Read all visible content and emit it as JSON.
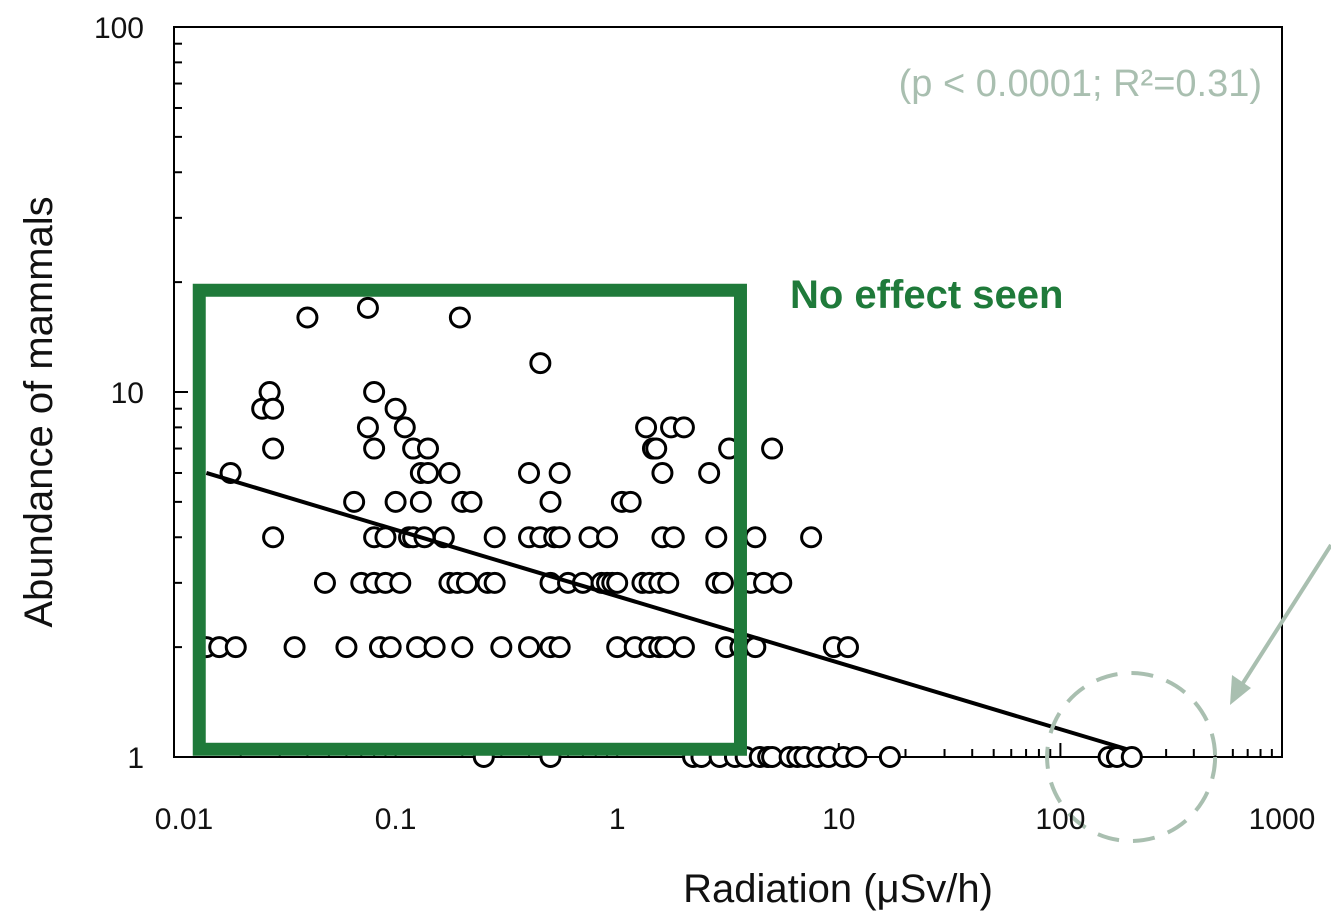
{
  "chart_data": {
    "type": "scatter",
    "xlabel": "Radiation (μSv/h)",
    "ylabel": "Abundance of mammals",
    "x_scale": "log",
    "y_scale": "log",
    "xlim": [
      0.01,
      1000
    ],
    "ylim": [
      1,
      100
    ],
    "x_tick_labels": [
      "0.01",
      "0.1",
      "1",
      "10",
      "100",
      "1000"
    ],
    "y_tick_labels": [
      "1",
      "10",
      "100"
    ],
    "grid": false,
    "statistics_label": "(p < 0.0001; R²=0.31)",
    "annotation_label": "No effect seen",
    "highlight_region": {
      "x": [
        0.013,
        3.6
      ],
      "y": [
        1.05,
        19
      ]
    },
    "trend_line": {
      "x": [
        0.014,
        200
      ],
      "y": [
        6.0,
        1.05
      ]
    },
    "circled_points_x_range": [
      160,
      230
    ],
    "points": [
      [
        0.014,
        2
      ],
      [
        0.016,
        2
      ],
      [
        0.019,
        2
      ],
      [
        0.018,
        6
      ],
      [
        0.025,
        9
      ],
      [
        0.027,
        10
      ],
      [
        0.028,
        9
      ],
      [
        0.028,
        7
      ],
      [
        0.028,
        4
      ],
      [
        0.035,
        2
      ],
      [
        0.04,
        16
      ],
      [
        0.048,
        3
      ],
      [
        0.06,
        2
      ],
      [
        0.065,
        5
      ],
      [
        0.07,
        3
      ],
      [
        0.075,
        8
      ],
      [
        0.075,
        17
      ],
      [
        0.08,
        7
      ],
      [
        0.08,
        10
      ],
      [
        0.08,
        4
      ],
      [
        0.08,
        3
      ],
      [
        0.085,
        2
      ],
      [
        0.09,
        3
      ],
      [
        0.09,
        4
      ],
      [
        0.095,
        2
      ],
      [
        0.1,
        9
      ],
      [
        0.1,
        5
      ],
      [
        0.105,
        3
      ],
      [
        0.11,
        8
      ],
      [
        0.115,
        4
      ],
      [
        0.12,
        7
      ],
      [
        0.12,
        4
      ],
      [
        0.125,
        2
      ],
      [
        0.13,
        5
      ],
      [
        0.13,
        6
      ],
      [
        0.135,
        4
      ],
      [
        0.14,
        7
      ],
      [
        0.14,
        6
      ],
      [
        0.15,
        2
      ],
      [
        0.165,
        4
      ],
      [
        0.175,
        6
      ],
      [
        0.175,
        3
      ],
      [
        0.19,
        3
      ],
      [
        0.195,
        16
      ],
      [
        0.2,
        5
      ],
      [
        0.2,
        2
      ],
      [
        0.21,
        3
      ],
      [
        0.22,
        5
      ],
      [
        0.25,
        1
      ],
      [
        0.26,
        3
      ],
      [
        0.28,
        4
      ],
      [
        0.28,
        3
      ],
      [
        0.3,
        2
      ],
      [
        0.4,
        4
      ],
      [
        0.4,
        2
      ],
      [
        0.4,
        6
      ],
      [
        0.45,
        4
      ],
      [
        0.45,
        12
      ],
      [
        0.5,
        5
      ],
      [
        0.5,
        3
      ],
      [
        0.5,
        2
      ],
      [
        0.5,
        1
      ],
      [
        0.52,
        4
      ],
      [
        0.55,
        6
      ],
      [
        0.55,
        4
      ],
      [
        0.55,
        2
      ],
      [
        0.6,
        3
      ],
      [
        0.7,
        3
      ],
      [
        0.75,
        4
      ],
      [
        0.85,
        3
      ],
      [
        0.9,
        4
      ],
      [
        0.9,
        3
      ],
      [
        0.95,
        3
      ],
      [
        1.0,
        2
      ],
      [
        1.0,
        3
      ],
      [
        1.05,
        5
      ],
      [
        1.15,
        5
      ],
      [
        1.2,
        2
      ],
      [
        1.3,
        3
      ],
      [
        1.35,
        8
      ],
      [
        1.4,
        2
      ],
      [
        1.4,
        3
      ],
      [
        1.45,
        7
      ],
      [
        1.5,
        7
      ],
      [
        1.55,
        2
      ],
      [
        1.55,
        3
      ],
      [
        1.6,
        6
      ],
      [
        1.6,
        4
      ],
      [
        1.65,
        2
      ],
      [
        1.7,
        3
      ],
      [
        1.75,
        8
      ],
      [
        1.8,
        4
      ],
      [
        2.0,
        8
      ],
      [
        2.0,
        2
      ],
      [
        2.2,
        1
      ],
      [
        2.4,
        1
      ],
      [
        2.6,
        6
      ],
      [
        2.8,
        4
      ],
      [
        2.8,
        3
      ],
      [
        2.9,
        1
      ],
      [
        3.0,
        3
      ],
      [
        3.1,
        2
      ],
      [
        3.2,
        7
      ],
      [
        3.4,
        1
      ],
      [
        3.6,
        2
      ],
      [
        3.8,
        1
      ],
      [
        4.0,
        3
      ],
      [
        4.2,
        2
      ],
      [
        4.2,
        4
      ],
      [
        4.4,
        1
      ],
      [
        4.6,
        3
      ],
      [
        4.8,
        1
      ],
      [
        5.0,
        7
      ],
      [
        5.0,
        1
      ],
      [
        5.5,
        3
      ],
      [
        6.0,
        1
      ],
      [
        6.5,
        1
      ],
      [
        7.0,
        1
      ],
      [
        7.5,
        4
      ],
      [
        8.0,
        1
      ],
      [
        9.0,
        1
      ],
      [
        9.5,
        2
      ],
      [
        10.5,
        1
      ],
      [
        11.0,
        2
      ],
      [
        12.0,
        1
      ],
      [
        17.0,
        1
      ],
      [
        165,
        1
      ],
      [
        180,
        1
      ],
      [
        210,
        1
      ]
    ]
  }
}
